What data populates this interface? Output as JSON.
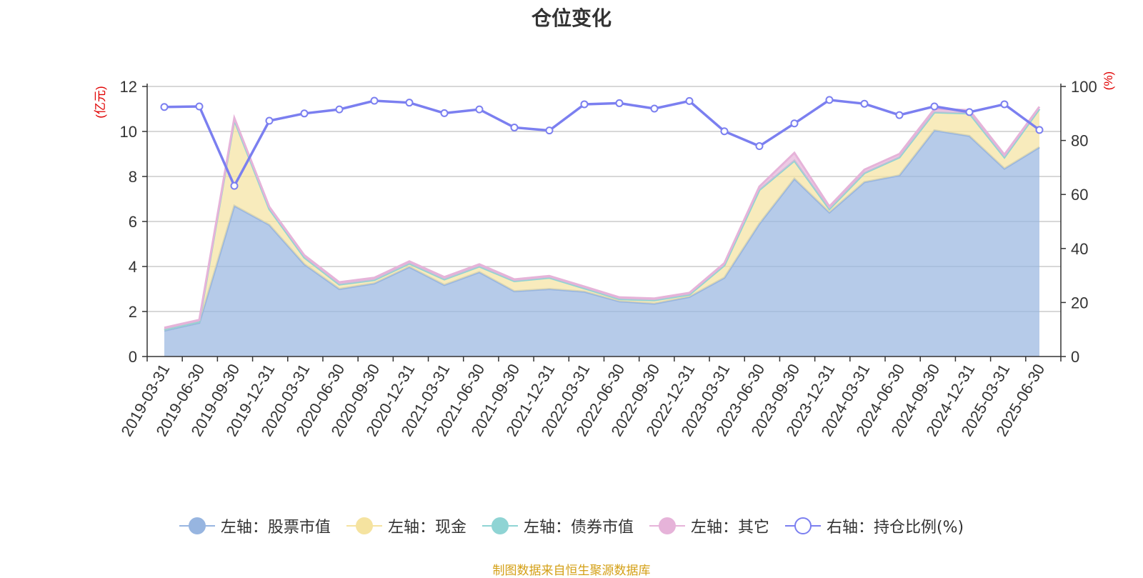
{
  "chart_data": {
    "type": "area",
    "title": "仓位变化",
    "left_axis_unit": "(亿元)",
    "right_axis_unit": "(%)",
    "ylim_left": [
      0,
      12
    ],
    "ylim_right": [
      0,
      100
    ],
    "yticks_left": [
      "0",
      "2",
      "4",
      "6",
      "8",
      "10",
      "12"
    ],
    "yticks_right": [
      "0",
      "20",
      "40",
      "60",
      "80",
      "100"
    ],
    "grid": true,
    "legend_position": "bottom",
    "categories": [
      "2019-03-31",
      "2019-06-30",
      "2019-09-30",
      "2019-12-31",
      "2020-03-31",
      "2020-06-30",
      "2020-09-30",
      "2020-12-31",
      "2021-03-31",
      "2021-06-30",
      "2021-09-30",
      "2021-12-31",
      "2022-03-31",
      "2022-06-30",
      "2022-09-30",
      "2022-12-31",
      "2023-03-31",
      "2023-06-30",
      "2023-09-30",
      "2023-12-31",
      "2024-03-31",
      "2024-06-30",
      "2024-09-30",
      "2024-12-31",
      "2025-03-31",
      "2025-06-30"
    ],
    "series": [
      {
        "name": "左轴：股票市值",
        "axis": "left",
        "stack": true,
        "color": "#97b5e0",
        "values": [
          1.15,
          1.5,
          6.7,
          5.85,
          4.1,
          3.0,
          3.25,
          3.98,
          3.18,
          3.75,
          2.9,
          3.0,
          2.88,
          2.45,
          2.35,
          2.65,
          3.5,
          5.9,
          7.9,
          6.4,
          7.75,
          8.05,
          10.05,
          9.8,
          8.35,
          9.3
        ]
      },
      {
        "name": "左轴：现金",
        "axis": "left",
        "stack": true,
        "color": "#f5e3a0",
        "values": [
          0.05,
          0.05,
          3.8,
          0.7,
          0.3,
          0.2,
          0.15,
          0.15,
          0.25,
          0.25,
          0.45,
          0.5,
          0.15,
          0.1,
          0.15,
          0.1,
          0.55,
          1.5,
          0.8,
          0.15,
          0.4,
          0.8,
          0.8,
          1.0,
          0.5,
          1.7
        ]
      },
      {
        "name": "左轴：债券市值",
        "axis": "left",
        "stack": true,
        "color": "#8fd4d4",
        "values": [
          0,
          0,
          0,
          0,
          0,
          0,
          0,
          0,
          0,
          0,
          0,
          0,
          0,
          0,
          0,
          0,
          0,
          0,
          0,
          0,
          0,
          0,
          0,
          0,
          0,
          0
        ]
      },
      {
        "name": "左轴：其它",
        "axis": "left",
        "stack": true,
        "color": "#e6b3d9",
        "values": [
          0.08,
          0.08,
          0.1,
          0.1,
          0.1,
          0.1,
          0.1,
          0.1,
          0.1,
          0.1,
          0.08,
          0.08,
          0.08,
          0.08,
          0.08,
          0.08,
          0.1,
          0.15,
          0.35,
          0.12,
          0.15,
          0.15,
          0.15,
          0.15,
          0.12,
          0.1
        ]
      },
      {
        "name": "右轴：持仓比例(%)",
        "axis": "right",
        "type": "line",
        "color": "#7b7ff0",
        "values": [
          92.4,
          92.6,
          63.2,
          87.3,
          90.0,
          91.5,
          94.7,
          94.0,
          90.1,
          91.5,
          84.8,
          83.7,
          93.4,
          93.8,
          91.8,
          94.6,
          83.4,
          77.9,
          86.3,
          95.0,
          93.6,
          89.4,
          92.6,
          90.5,
          93.4,
          83.9
        ]
      }
    ]
  },
  "source_note": "制图数据来自恒生聚源数据库"
}
